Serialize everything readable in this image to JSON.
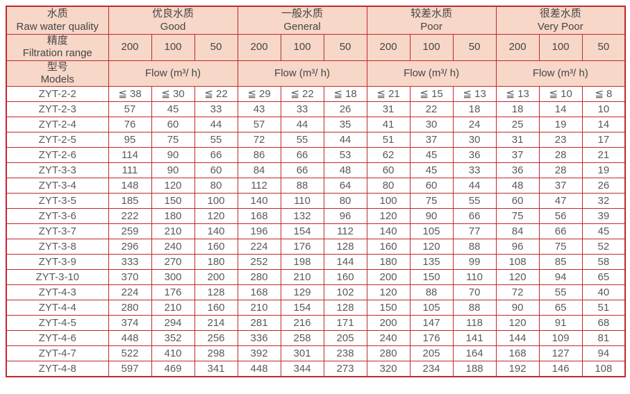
{
  "colors": {
    "grid_border_red": "#c1272d",
    "header_background_pink": "#f7d7c8",
    "header_text_gray": "#454545",
    "body_text_gray": "#595959"
  },
  "table": {
    "col1_headers": [
      {
        "zh": "水质",
        "en": "Raw water quality"
      },
      {
        "zh": "精度",
        "en": "Filtration range"
      },
      {
        "zh": "型号",
        "en": "Models"
      }
    ],
    "quality_groups": [
      {
        "zh": "优良水质",
        "en": "Good"
      },
      {
        "zh": "一般水质",
        "en": "General"
      },
      {
        "zh": "较差水质",
        "en": "Poor"
      },
      {
        "zh": "很差水质",
        "en": "Very Poor"
      }
    ],
    "filtration_values": [
      "200",
      "100",
      "50"
    ],
    "flow_label": "Flow (m³/ h)",
    "rows": [
      {
        "model": "ZYT-2-2",
        "cells": [
          "≦ 38",
          "≦ 30",
          "≦ 22",
          "≦ 29",
          "≦ 22",
          "≦ 18",
          "≦ 21",
          "≦ 15",
          "≦ 13",
          "≦ 13",
          "≦ 10",
          "≦ 8"
        ]
      },
      {
        "model": "ZYT-2-3",
        "cells": [
          57,
          45,
          33,
          43,
          33,
          26,
          31,
          22,
          18,
          18,
          14,
          10
        ]
      },
      {
        "model": "ZYT-2-4",
        "cells": [
          76,
          60,
          44,
          57,
          44,
          35,
          41,
          30,
          24,
          25,
          19,
          14
        ]
      },
      {
        "model": "ZYT-2-5",
        "cells": [
          95,
          75,
          55,
          72,
          55,
          44,
          51,
          37,
          30,
          31,
          23,
          17
        ]
      },
      {
        "model": "ZYT-2-6",
        "cells": [
          114,
          90,
          66,
          86,
          66,
          53,
          62,
          45,
          36,
          37,
          28,
          21
        ]
      },
      {
        "model": "ZYT-3-3",
        "cells": [
          111,
          90,
          60,
          84,
          66,
          48,
          60,
          45,
          33,
          36,
          28,
          19
        ]
      },
      {
        "model": "ZYT-3-4",
        "cells": [
          148,
          120,
          80,
          112,
          88,
          64,
          80,
          60,
          44,
          48,
          37,
          26
        ]
      },
      {
        "model": "ZYT-3-5",
        "cells": [
          185,
          150,
          100,
          140,
          110,
          80,
          100,
          75,
          55,
          60,
          47,
          32
        ]
      },
      {
        "model": "ZYT-3-6",
        "cells": [
          222,
          180,
          120,
          168,
          132,
          96,
          120,
          90,
          66,
          75,
          56,
          39
        ]
      },
      {
        "model": "ZYT-3-7",
        "cells": [
          259,
          210,
          140,
          196,
          154,
          112,
          140,
          105,
          77,
          84,
          66,
          45
        ]
      },
      {
        "model": "ZYT-3-8",
        "cells": [
          296,
          240,
          160,
          224,
          176,
          128,
          160,
          120,
          88,
          96,
          75,
          52
        ]
      },
      {
        "model": "ZYT-3-9",
        "cells": [
          333,
          270,
          180,
          252,
          198,
          144,
          180,
          135,
          99,
          108,
          85,
          58
        ]
      },
      {
        "model": "ZYT-3-10",
        "cells": [
          370,
          300,
          200,
          280,
          210,
          160,
          200,
          150,
          110,
          120,
          94,
          65
        ]
      },
      {
        "model": "ZYT-4-3",
        "cells": [
          224,
          176,
          128,
          168,
          129,
          102,
          120,
          88,
          70,
          72,
          55,
          40
        ]
      },
      {
        "model": "ZYT-4-4",
        "cells": [
          280,
          210,
          160,
          210,
          154,
          128,
          150,
          105,
          88,
          90,
          65,
          51
        ]
      },
      {
        "model": "ZYT-4-5",
        "cells": [
          374,
          294,
          214,
          281,
          216,
          171,
          200,
          147,
          118,
          120,
          91,
          68
        ]
      },
      {
        "model": "ZYT-4-6",
        "cells": [
          448,
          352,
          256,
          336,
          258,
          205,
          240,
          176,
          141,
          144,
          109,
          81
        ]
      },
      {
        "model": "ZYT-4-7",
        "cells": [
          522,
          410,
          298,
          392,
          301,
          238,
          280,
          205,
          164,
          168,
          127,
          94
        ]
      },
      {
        "model": "ZYT-4-8",
        "cells": [
          597,
          469,
          341,
          448,
          344,
          273,
          320,
          234,
          188,
          192,
          146,
          108
        ]
      }
    ]
  }
}
